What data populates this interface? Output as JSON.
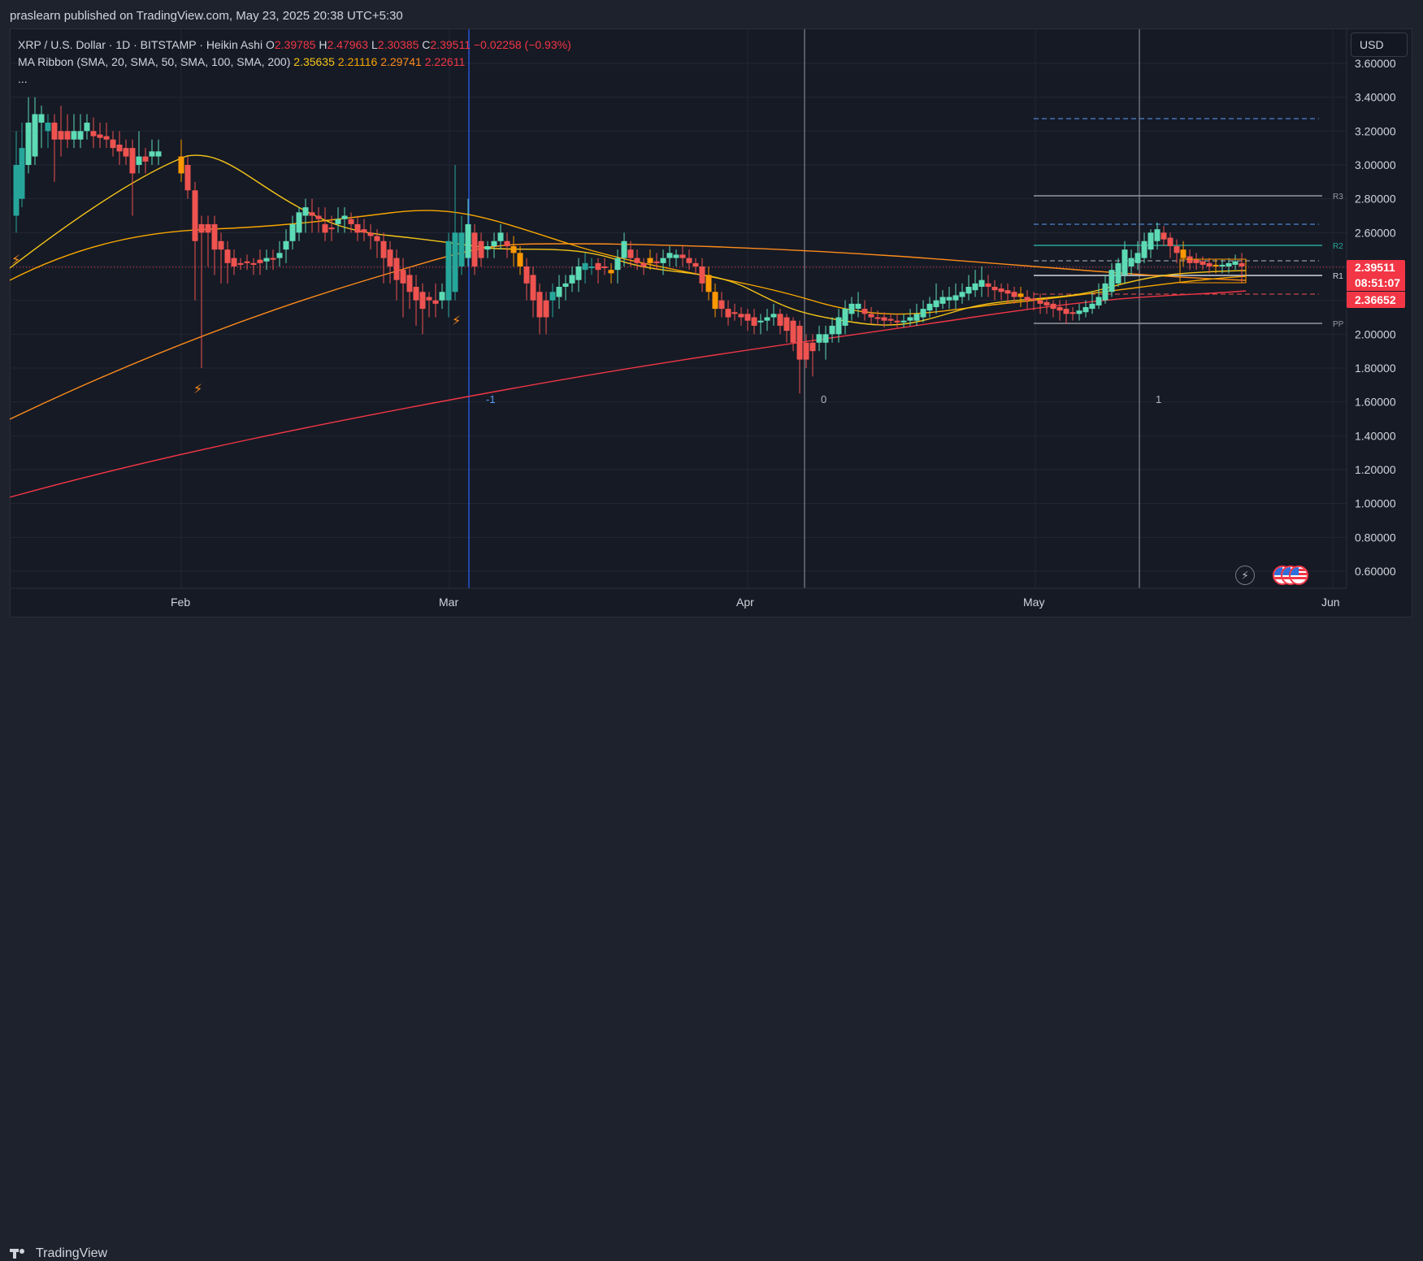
{
  "header": {
    "published_by": "praslearn published on TradingView.com, May 23, 2025 20:38 UTC+5:30"
  },
  "legend": {
    "symbol_line": "XRP / U.S. Dollar · 1D · BITSTAMP · Heikin Ashi",
    "open_label": "O",
    "open": "2.39785",
    "high_label": "H",
    "high": "2.47963",
    "low_label": "L",
    "low": "2.30385",
    "close_label": "C",
    "close": "2.39511",
    "change": "−0.02258 (−0.93%)",
    "ma_label": "MA Ribbon (SMA, 20, SMA, 50, SMA, 100, SMA, 200)",
    "ma_values": [
      "2.35635",
      "2.21116",
      "2.29741",
      "2.22611"
    ],
    "more": "..."
  },
  "currency_button": "USD",
  "price_axis": {
    "ticks": [
      "3.60000",
      "3.40000",
      "3.20000",
      "3.00000",
      "2.80000",
      "2.60000",
      "2.40000",
      "2.20000",
      "2.00000",
      "1.80000",
      "1.60000",
      "1.40000",
      "1.20000",
      "1.00000",
      "0.80000",
      "0.60000"
    ],
    "current_price": "2.39511",
    "countdown": "08:51:07",
    "ma_marker": "2.36652"
  },
  "time_axis": {
    "ticks": [
      "Feb",
      "Mar",
      "Apr",
      "May",
      "Jun"
    ]
  },
  "pivot_labels": [
    "R3",
    "R2",
    "R1",
    "PP"
  ],
  "fib_cycle_labels": [
    "-1",
    "0",
    "1"
  ],
  "colors": {
    "bull": "#26a69a",
    "bear": "#ef5350",
    "up_light": "#5ddbb5",
    "orange_candle": "#ff9800",
    "ma20": "#f5c518",
    "ma50": "#f7a600",
    "ma100": "#ff8c1a",
    "ma200": "#f23645",
    "blue_line": "#2962ff"
  },
  "footer": {
    "brand": "TradingView"
  }
}
